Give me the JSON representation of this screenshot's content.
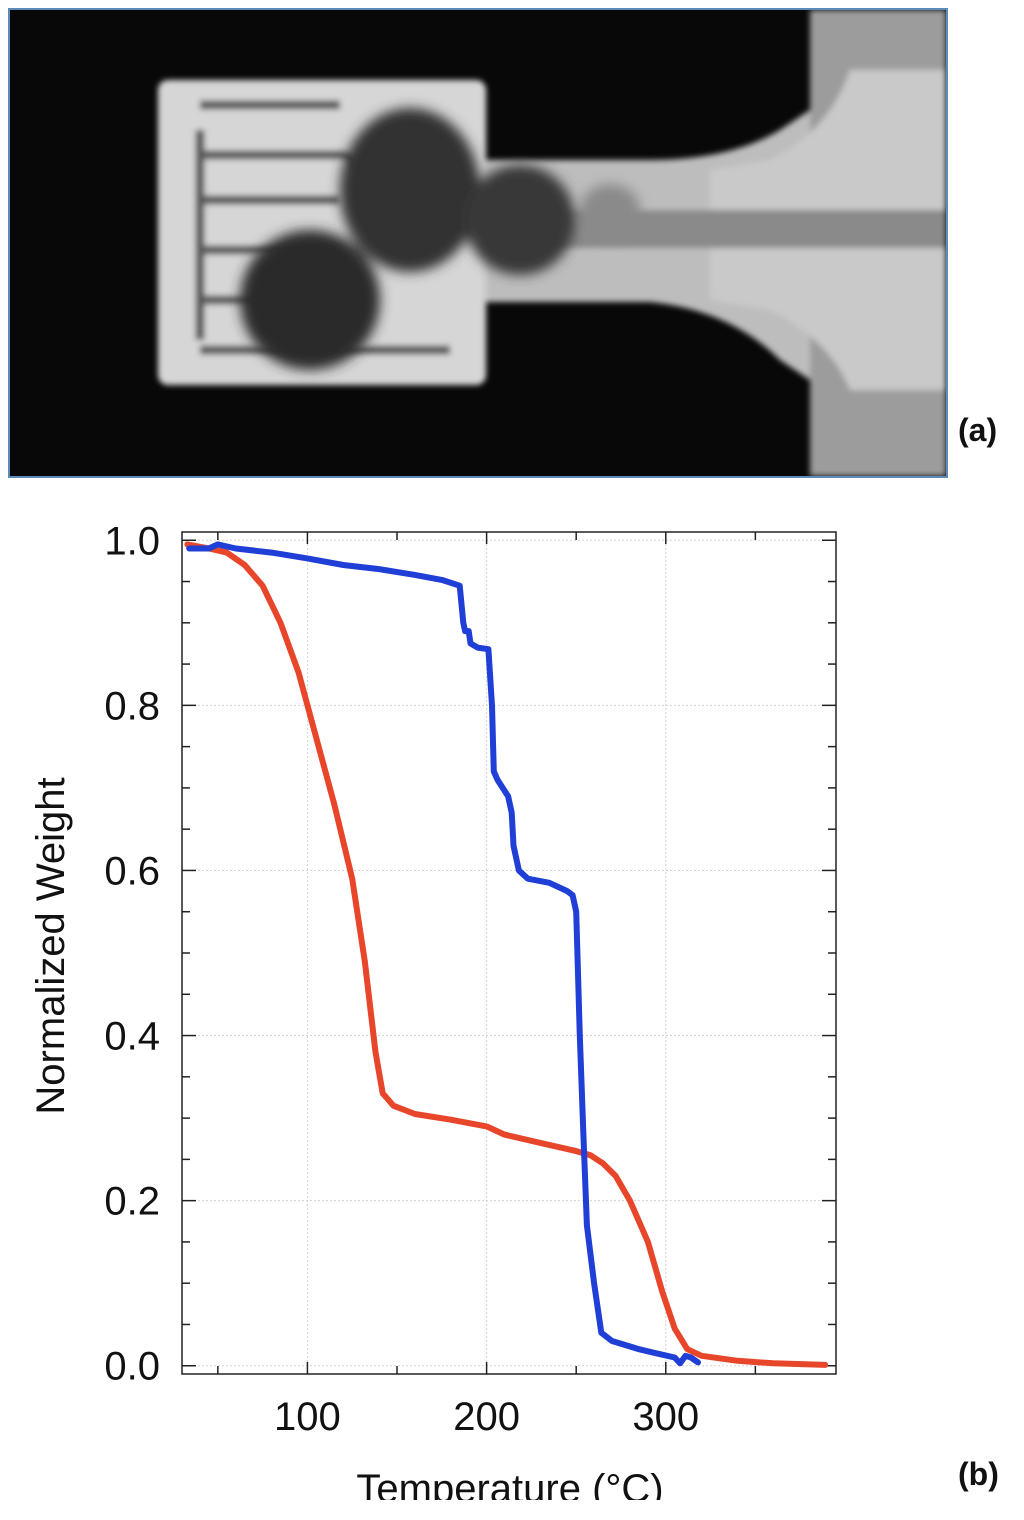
{
  "panels": {
    "a_label": "(a)",
    "b_label": "(b)"
  },
  "micrograph": {
    "description_icon": "grayscale-microscope-image",
    "colors": {
      "background": "#080808",
      "heater": "#d9d9d9",
      "droplet": "#2e2e2e",
      "trace": "#b5b5b5",
      "border": "#5b8bb8"
    }
  },
  "chart_data": {
    "type": "line",
    "xlabel": "Temperature (°C)",
    "ylabel": "Normalized Weight",
    "xlim": [
      30,
      395
    ],
    "ylim": [
      -0.01,
      1.01
    ],
    "x_ticks": [
      100,
      200,
      300
    ],
    "x_tick_labels": [
      "100",
      "200",
      "300"
    ],
    "y_ticks": [
      0.0,
      0.2,
      0.4,
      0.6,
      0.8,
      1.0
    ],
    "y_tick_labels": [
      "0.0",
      "0.2",
      "0.4",
      "0.6",
      "0.8",
      "1.0"
    ],
    "grid": true,
    "series": [
      {
        "color": "#e8462a",
        "points": [
          [
            33,
            0.995
          ],
          [
            45,
            0.99
          ],
          [
            55,
            0.985
          ],
          [
            65,
            0.97
          ],
          [
            75,
            0.945
          ],
          [
            85,
            0.9
          ],
          [
            95,
            0.84
          ],
          [
            105,
            0.76
          ],
          [
            115,
            0.68
          ],
          [
            125,
            0.59
          ],
          [
            132,
            0.49
          ],
          [
            138,
            0.38
          ],
          [
            142,
            0.33
          ],
          [
            148,
            0.315
          ],
          [
            160,
            0.305
          ],
          [
            180,
            0.298
          ],
          [
            200,
            0.29
          ],
          [
            210,
            0.28
          ],
          [
            230,
            0.27
          ],
          [
            250,
            0.26
          ],
          [
            258,
            0.255
          ],
          [
            265,
            0.245
          ],
          [
            272,
            0.23
          ],
          [
            280,
            0.2
          ],
          [
            290,
            0.15
          ],
          [
            298,
            0.09
          ],
          [
            305,
            0.045
          ],
          [
            312,
            0.02
          ],
          [
            320,
            0.012
          ],
          [
            340,
            0.006
          ],
          [
            360,
            0.003
          ],
          [
            389,
            0.001
          ]
        ]
      },
      {
        "color": "#1f3fd6",
        "points": [
          [
            34,
            0.99
          ],
          [
            45,
            0.99
          ],
          [
            50,
            0.995
          ],
          [
            60,
            0.99
          ],
          [
            80,
            0.985
          ],
          [
            100,
            0.978
          ],
          [
            120,
            0.97
          ],
          [
            140,
            0.965
          ],
          [
            160,
            0.958
          ],
          [
            175,
            0.952
          ],
          [
            185,
            0.945
          ],
          [
            187,
            0.9
          ],
          [
            188,
            0.89
          ],
          [
            190,
            0.89
          ],
          [
            191,
            0.875
          ],
          [
            195,
            0.87
          ],
          [
            201,
            0.868
          ],
          [
            203,
            0.8
          ],
          [
            204,
            0.72
          ],
          [
            206,
            0.71
          ],
          [
            209,
            0.7
          ],
          [
            212,
            0.69
          ],
          [
            214,
            0.67
          ],
          [
            215,
            0.63
          ],
          [
            218,
            0.6
          ],
          [
            223,
            0.59
          ],
          [
            235,
            0.585
          ],
          [
            245,
            0.575
          ],
          [
            248,
            0.57
          ],
          [
            250,
            0.55
          ],
          [
            252,
            0.4
          ],
          [
            254,
            0.28
          ],
          [
            256,
            0.17
          ],
          [
            260,
            0.1
          ],
          [
            264,
            0.04
          ],
          [
            270,
            0.03
          ],
          [
            285,
            0.02
          ],
          [
            295,
            0.015
          ],
          [
            305,
            0.01
          ],
          [
            308,
            0.003
          ],
          [
            311,
            0.012
          ],
          [
            314,
            0.01
          ],
          [
            318,
            0.004
          ]
        ]
      }
    ]
  }
}
